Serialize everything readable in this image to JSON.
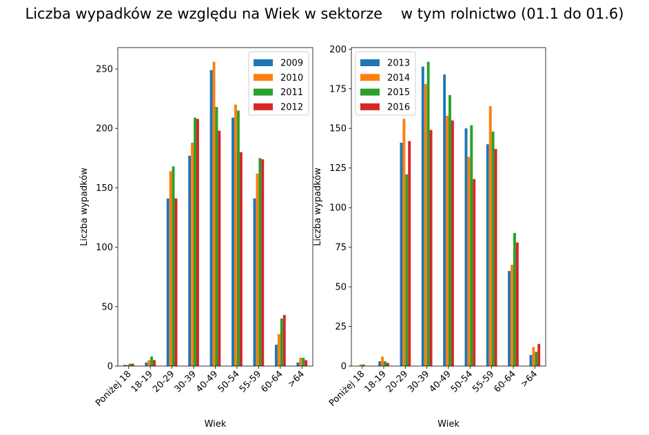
{
  "title": "Liczba wypadków ze względu na Wiek w sektorze    w tym rolnictwo (01.1 do 01.6)",
  "colors": {
    "blue": "#1f77b4",
    "orange": "#ff7f0e",
    "green": "#2ca02c",
    "red": "#d62728"
  },
  "chart_data": [
    {
      "type": "bar",
      "xlabel": "Wiek",
      "ylabel": "Liczba wypadków",
      "categories": [
        "Poniżej 18",
        "18-19",
        "20-29",
        "30-39",
        "40-49",
        "50-54",
        "55-59",
        "60-64",
        ">64"
      ],
      "ylim": [
        0,
        268
      ],
      "yticks": [
        0,
        50,
        100,
        150,
        200,
        250
      ],
      "legend_position": "upper right",
      "series": [
        {
          "name": "2009",
          "color": "#1f77b4",
          "values": [
            1,
            3,
            141,
            177,
            249,
            209,
            141,
            18,
            3
          ]
        },
        {
          "name": "2010",
          "color": "#ff7f0e",
          "values": [
            1,
            5,
            164,
            188,
            256,
            220,
            162,
            27,
            7
          ]
        },
        {
          "name": "2011",
          "color": "#2ca02c",
          "values": [
            2,
            8,
            168,
            209,
            218,
            215,
            175,
            40,
            7
          ]
        },
        {
          "name": "2012",
          "color": "#d62728",
          "values": [
            2,
            5,
            141,
            208,
            198,
            180,
            174,
            43,
            5
          ]
        }
      ]
    },
    {
      "type": "bar",
      "xlabel": "Wiek",
      "ylabel": "Liczba wypadków",
      "categories": [
        "Poniżej 18",
        "18-19",
        "20-29",
        "30-39",
        "40-49",
        "50-54",
        "55-59",
        "60-64",
        ">64"
      ],
      "ylim": [
        0,
        201
      ],
      "yticks": [
        0,
        25,
        50,
        75,
        100,
        125,
        150,
        175,
        200
      ],
      "legend_position": "upper left",
      "series": [
        {
          "name": "2013",
          "color": "#1f77b4",
          "values": [
            0,
            3,
            141,
            189,
            184,
            150,
            140,
            60,
            7
          ]
        },
        {
          "name": "2014",
          "color": "#ff7f0e",
          "values": [
            1,
            6,
            156,
            178,
            158,
            132,
            164,
            64,
            12
          ]
        },
        {
          "name": "2015",
          "color": "#2ca02c",
          "values": [
            1,
            3,
            121,
            192,
            171,
            152,
            148,
            84,
            9
          ]
        },
        {
          "name": "2016",
          "color": "#d62728",
          "values": [
            0,
            2,
            142,
            149,
            155,
            118,
            137,
            78,
            14
          ]
        }
      ]
    }
  ]
}
